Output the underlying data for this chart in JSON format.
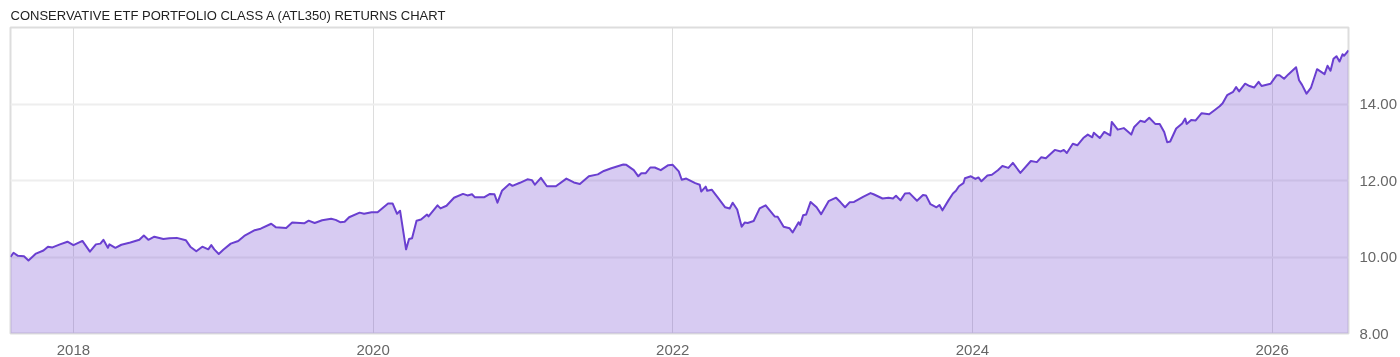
{
  "chart_data": {
    "type": "area",
    "title": "CONSERVATIVE ETF PORTFOLIO CLASS A (ATL350) RETURNS CHART",
    "xlim": [
      2017.58,
      2026.51
    ],
    "xticks": [
      2018,
      2020,
      2022,
      2024,
      2026
    ],
    "ylim": [
      8,
      16
    ],
    "yticks": [
      {
        "value": 8,
        "label": "8.00"
      },
      {
        "value": 10,
        "label": "10.00"
      },
      {
        "value": 12,
        "label": "12.00"
      },
      {
        "value": 14,
        "label": "14.00"
      }
    ],
    "grid": true,
    "marker": "none",
    "line_style": "solid",
    "series": [
      {
        "color": "#6a3fd0",
        "x": [
          2017.58,
          2017.6,
          2017.63,
          2017.67,
          2017.7,
          2017.75,
          2017.8,
          2017.83,
          2017.86,
          2017.91,
          2017.96,
          2018.0,
          2018.06,
          2018.11,
          2018.15,
          2018.18,
          2018.2,
          2018.23,
          2018.24,
          2018.28,
          2018.32,
          2018.38,
          2018.44,
          2018.47,
          2018.5,
          2018.54,
          2018.6,
          2018.64,
          2018.69,
          2018.75,
          2018.78,
          2018.82,
          2018.86,
          2018.9,
          2018.92,
          2018.94,
          2018.97,
          2019.0,
          2019.05,
          2019.1,
          2019.14,
          2019.21,
          2019.25,
          2019.32,
          2019.35,
          2019.42,
          2019.46,
          2019.54,
          2019.57,
          2019.61,
          2019.66,
          2019.72,
          2019.75,
          2019.78,
          2019.81,
          2019.84,
          2019.91,
          2019.94,
          2019.99,
          2020.03,
          2020.06,
          2020.1,
          2020.13,
          2020.16,
          2020.18,
          2020.22,
          2020.24,
          2020.26,
          2020.29,
          2020.32,
          2020.36,
          2020.37,
          2020.43,
          2020.45,
          2020.49,
          2020.54,
          2020.6,
          2020.63,
          2020.66,
          2020.68,
          2020.74,
          2020.78,
          2020.81,
          2020.83,
          2020.86,
          2020.91,
          2020.93,
          2020.98,
          2021.03,
          2021.06,
          2021.08,
          2021.12,
          2021.16,
          2021.22,
          2021.29,
          2021.34,
          2021.38,
          2021.44,
          2021.5,
          2021.54,
          2021.59,
          2021.67,
          2021.69,
          2021.74,
          2021.77,
          2021.79,
          2021.82,
          2021.85,
          2021.88,
          2021.92,
          2021.97,
          2022.0,
          2022.04,
          2022.06,
          2022.09,
          2022.15,
          2022.18,
          2022.19,
          2022.22,
          2022.23,
          2022.26,
          2022.3,
          2022.35,
          2022.38,
          2022.4,
          2022.43,
          2022.46,
          2022.48,
          2022.5,
          2022.54,
          2022.58,
          2022.62,
          2022.68,
          2022.7,
          2022.74,
          2022.78,
          2022.8,
          2022.84,
          2022.85,
          2022.87,
          2022.89,
          2022.92,
          2022.96,
          2022.99,
          2023.04,
          2023.09,
          2023.12,
          2023.15,
          2023.18,
          2023.21,
          2023.27,
          2023.32,
          2023.34,
          2023.4,
          2023.44,
          2023.47,
          2023.49,
          2023.52,
          2023.55,
          2023.58,
          2023.63,
          2023.67,
          2023.69,
          2023.72,
          2023.76,
          2023.78,
          2023.8,
          2023.84,
          2023.87,
          2023.89,
          2023.91,
          2023.94,
          2023.95,
          2023.99,
          2024.02,
          2024.04,
          2024.06,
          2024.1,
          2024.13,
          2024.17,
          2024.2,
          2024.24,
          2024.27,
          2024.32,
          2024.39,
          2024.43,
          2024.46,
          2024.49,
          2024.55,
          2024.59,
          2024.61,
          2024.63,
          2024.67,
          2024.7,
          2024.74,
          2024.77,
          2024.8,
          2024.81,
          2024.85,
          2024.88,
          2024.92,
          2024.93,
          2024.97,
          2025.01,
          2025.06,
          2025.08,
          2025.12,
          2025.15,
          2025.18,
          2025.22,
          2025.25,
          2025.28,
          2025.3,
          2025.32,
          2025.36,
          2025.4,
          2025.42,
          2025.43,
          2025.46,
          2025.49,
          2025.53,
          2025.58,
          2025.62,
          2025.65,
          2025.67,
          2025.7,
          2025.74,
          2025.76,
          2025.78,
          2025.82,
          2025.85,
          2025.88,
          2025.91,
          2025.93,
          2025.99,
          2026.03,
          2026.05,
          2026.08,
          2026.11,
          2026.16,
          2026.18,
          2026.2,
          2026.23,
          2026.26,
          2026.3,
          2026.35,
          2026.37,
          2026.39,
          2026.41,
          2026.43,
          2026.45,
          2026.47,
          2026.48,
          2026.51
        ],
        "values": [
          10.0,
          10.11,
          10.03,
          10.02,
          9.91,
          10.09,
          10.17,
          10.27,
          10.25,
          10.33,
          10.4,
          10.31,
          10.42,
          10.14,
          10.33,
          10.35,
          10.45,
          10.24,
          10.33,
          10.24,
          10.32,
          10.38,
          10.45,
          10.56,
          10.45,
          10.53,
          10.47,
          10.49,
          10.5,
          10.44,
          10.27,
          10.15,
          10.27,
          10.2,
          10.31,
          10.2,
          10.08,
          10.19,
          10.35,
          10.42,
          10.55,
          10.7,
          10.74,
          10.87,
          10.78,
          10.76,
          10.9,
          10.88,
          10.95,
          10.89,
          10.96,
          11.0,
          10.97,
          10.91,
          10.92,
          11.04,
          11.16,
          11.13,
          11.17,
          11.17,
          11.27,
          11.4,
          11.4,
          11.13,
          11.21,
          10.2,
          10.47,
          10.49,
          10.95,
          10.98,
          11.11,
          11.06,
          11.35,
          11.27,
          11.34,
          11.55,
          11.65,
          11.61,
          11.64,
          11.56,
          11.56,
          11.65,
          11.64,
          11.42,
          11.73,
          11.91,
          11.86,
          11.94,
          12.03,
          12.01,
          11.89,
          12.07,
          11.85,
          11.85,
          12.05,
          11.95,
          11.91,
          12.11,
          12.16,
          12.25,
          12.32,
          12.42,
          12.41,
          12.27,
          12.11,
          12.19,
          12.19,
          12.34,
          12.34,
          12.27,
          12.4,
          12.41,
          12.24,
          12.02,
          12.05,
          11.93,
          11.89,
          11.71,
          11.84,
          11.73,
          11.76,
          11.56,
          11.3,
          11.27,
          11.42,
          11.24,
          10.79,
          10.9,
          10.89,
          10.94,
          11.27,
          11.35,
          11.06,
          11.05,
          10.79,
          10.75,
          10.64,
          10.91,
          10.84,
          11.09,
          11.11,
          11.44,
          11.3,
          11.12,
          11.46,
          11.55,
          11.43,
          11.3,
          11.43,
          11.44,
          11.57,
          11.67,
          11.64,
          11.53,
          11.55,
          11.53,
          11.6,
          11.48,
          11.66,
          11.67,
          11.47,
          11.62,
          11.61,
          11.38,
          11.3,
          11.36,
          11.22,
          11.48,
          11.66,
          11.73,
          11.85,
          11.93,
          12.06,
          12.11,
          12.04,
          12.08,
          11.98,
          12.13,
          12.15,
          12.27,
          12.38,
          12.33,
          12.46,
          12.2,
          12.51,
          12.48,
          12.61,
          12.58,
          12.8,
          12.76,
          12.8,
          12.72,
          12.96,
          12.92,
          13.11,
          13.2,
          13.13,
          13.25,
          13.11,
          13.27,
          13.18,
          13.53,
          13.33,
          13.37,
          13.2,
          13.4,
          13.56,
          13.53,
          13.64,
          13.48,
          13.48,
          13.27,
          13.0,
          13.02,
          13.36,
          13.49,
          13.62,
          13.48,
          13.58,
          13.57,
          13.76,
          13.73,
          13.85,
          13.94,
          14.02,
          14.23,
          14.32,
          14.44,
          14.33,
          14.53,
          14.47,
          14.43,
          14.58,
          14.47,
          14.53,
          14.75,
          14.75,
          14.66,
          14.78,
          14.96,
          14.62,
          14.5,
          14.27,
          14.43,
          14.91,
          14.78,
          15.0,
          14.87,
          15.18,
          15.25,
          15.11,
          15.3,
          15.26,
          15.4
        ]
      }
    ]
  }
}
